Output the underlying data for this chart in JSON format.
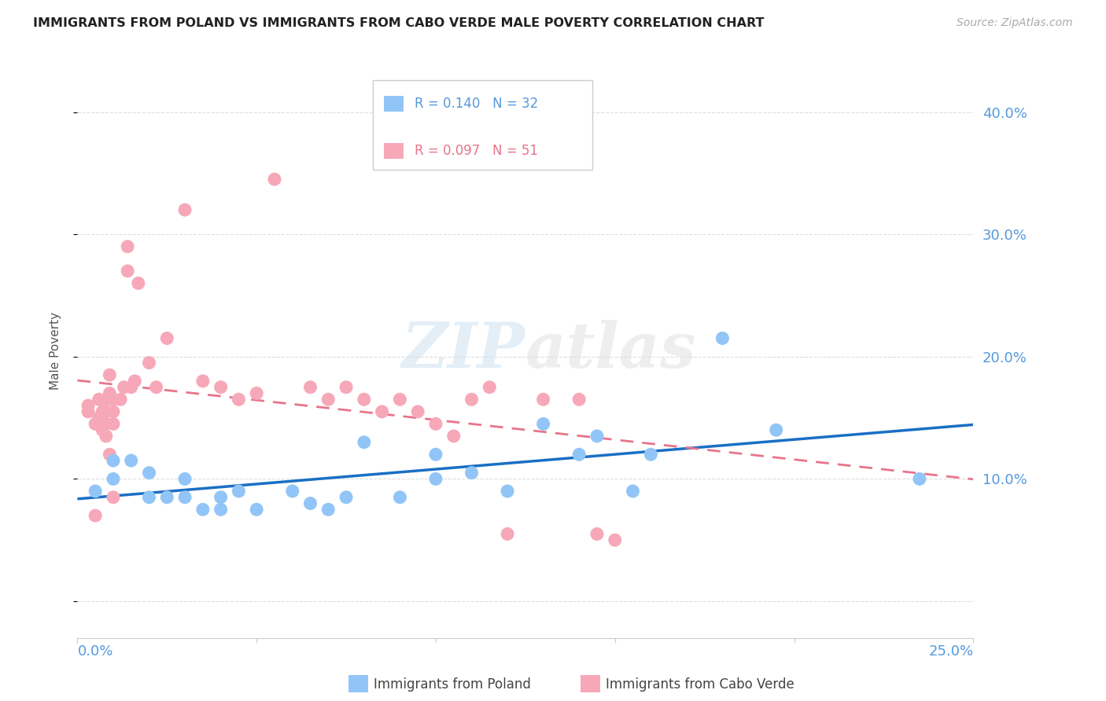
{
  "title": "IMMIGRANTS FROM POLAND VS IMMIGRANTS FROM CABO VERDE MALE POVERTY CORRELATION CHART",
  "source": "Source: ZipAtlas.com",
  "ylabel": "Male Poverty",
  "y_ticks": [
    0.0,
    0.1,
    0.2,
    0.3,
    0.4
  ],
  "y_tick_labels": [
    "",
    "10.0%",
    "20.0%",
    "30.0%",
    "40.0%"
  ],
  "xlim": [
    0.0,
    0.25
  ],
  "ylim": [
    -0.03,
    0.44
  ],
  "legend_R1": "R = 0.140",
  "legend_N1": "N = 32",
  "legend_R2": "R = 0.097",
  "legend_N2": "N = 51",
  "color_poland": "#92c5f7",
  "color_caboverde": "#f7a8b8",
  "color_poland_line": "#1a6fc4",
  "color_caboverde_line": "#e8748a",
  "color_axis_labels": "#5599dd",
  "color_grid": "#dddddd",
  "background_color": "#ffffff",
  "poland_x": [
    0.005,
    0.01,
    0.01,
    0.015,
    0.02,
    0.02,
    0.025,
    0.03,
    0.03,
    0.035,
    0.04,
    0.04,
    0.045,
    0.05,
    0.06,
    0.065,
    0.07,
    0.075,
    0.08,
    0.09,
    0.1,
    0.1,
    0.11,
    0.12,
    0.13,
    0.14,
    0.145,
    0.155,
    0.16,
    0.18,
    0.195,
    0.235
  ],
  "poland_y": [
    0.09,
    0.115,
    0.1,
    0.115,
    0.105,
    0.085,
    0.085,
    0.1,
    0.085,
    0.075,
    0.085,
    0.075,
    0.09,
    0.075,
    0.09,
    0.08,
    0.075,
    0.085,
    0.13,
    0.085,
    0.12,
    0.1,
    0.105,
    0.09,
    0.145,
    0.12,
    0.135,
    0.09,
    0.12,
    0.215,
    0.14,
    0.1
  ],
  "caboverde_x": [
    0.003,
    0.003,
    0.005,
    0.005,
    0.006,
    0.006,
    0.007,
    0.007,
    0.008,
    0.008,
    0.008,
    0.008,
    0.009,
    0.009,
    0.009,
    0.01,
    0.01,
    0.01,
    0.01,
    0.012,
    0.013,
    0.014,
    0.014,
    0.015,
    0.016,
    0.017,
    0.02,
    0.022,
    0.025,
    0.03,
    0.035,
    0.04,
    0.045,
    0.05,
    0.055,
    0.065,
    0.07,
    0.075,
    0.08,
    0.085,
    0.09,
    0.095,
    0.1,
    0.105,
    0.11,
    0.115,
    0.12,
    0.13,
    0.14,
    0.145,
    0.15
  ],
  "caboverde_y": [
    0.16,
    0.155,
    0.145,
    0.07,
    0.165,
    0.15,
    0.155,
    0.14,
    0.165,
    0.155,
    0.145,
    0.135,
    0.185,
    0.17,
    0.12,
    0.165,
    0.155,
    0.145,
    0.085,
    0.165,
    0.175,
    0.27,
    0.29,
    0.175,
    0.18,
    0.26,
    0.195,
    0.175,
    0.215,
    0.32,
    0.18,
    0.175,
    0.165,
    0.17,
    0.345,
    0.175,
    0.165,
    0.175,
    0.165,
    0.155,
    0.165,
    0.155,
    0.145,
    0.135,
    0.165,
    0.175,
    0.055,
    0.165,
    0.165,
    0.055,
    0.05
  ]
}
